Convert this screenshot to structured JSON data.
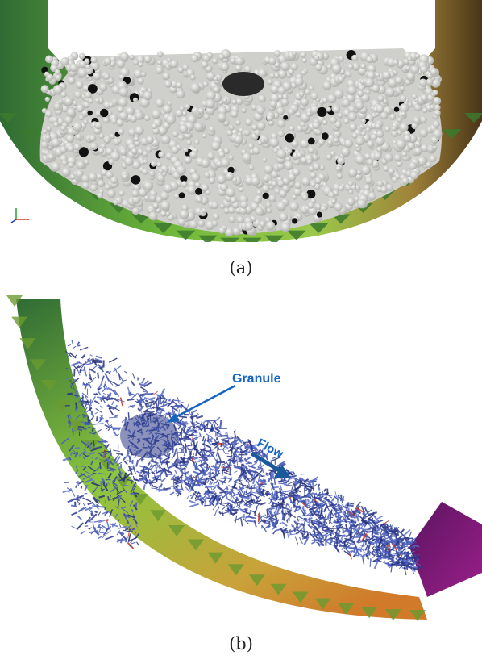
{
  "figure": {
    "panel_a": {
      "caption": "(a)",
      "colors": {
        "drum_left": "#2f6b34",
        "drum_bottom": "#8cc63f",
        "drum_right": "#7a5a22",
        "particle": "#d9d9d6",
        "tracer": "#111111"
      }
    },
    "panel_b": {
      "caption": "(b)",
      "annotations": {
        "granule": "Granule",
        "flow": "Flow"
      },
      "colors": {
        "annotation": "#1565c0",
        "bond_network": "#3a4a96",
        "drum_top": "#2f6b34",
        "drum_bottom": "#c9a23a",
        "end_cap": "#7d1a78"
      }
    }
  }
}
